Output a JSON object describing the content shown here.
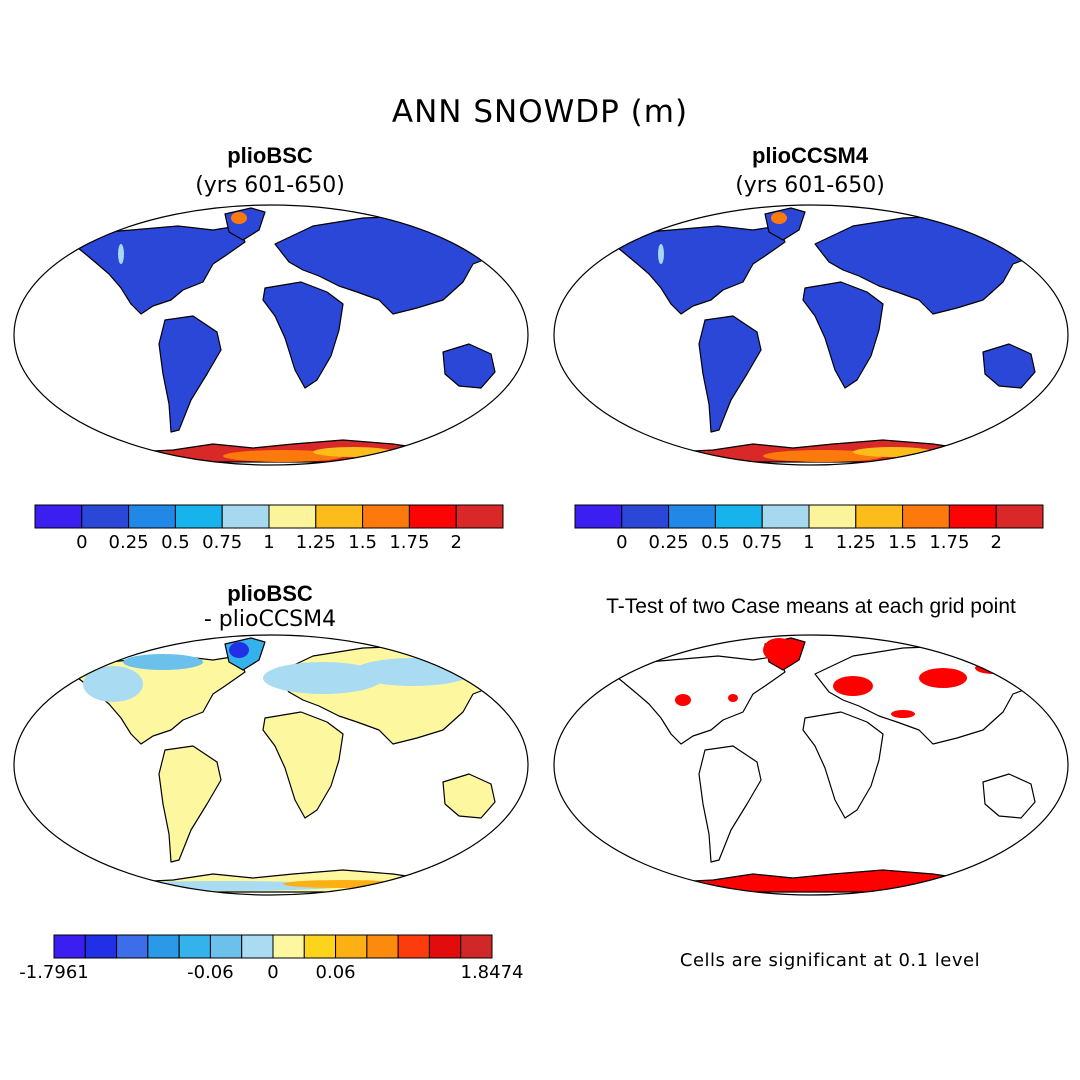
{
  "main_title": "ANN SNOWDP (m)",
  "panels": [
    {
      "title": "plioBSC",
      "subtitle": "(yrs 601-650)"
    },
    {
      "title": "plioCCSM4",
      "subtitle": "(yrs 601-650)"
    },
    {
      "title": "plioBSC",
      "subtitle": "- plioCCSM4"
    },
    {
      "title": "T-Test of two Case means at each grid point",
      "subtitle": ""
    }
  ],
  "colorbar_abs": {
    "colors": [
      "#3a1ff0",
      "#2b47d8",
      "#2288e8",
      "#16b3ec",
      "#a6d8f0",
      "#fcf49a",
      "#fcbc1c",
      "#fc7a0c",
      "#fc0404",
      "#d82828"
    ],
    "labels": [
      "0",
      "0.25",
      "0.5",
      "0.75",
      "1",
      "1.25",
      "1.5",
      "1.75",
      "2"
    ]
  },
  "colorbar_diff": {
    "colors": [
      "#3a1ff0",
      "#2130e6",
      "#3b6ee8",
      "#2a9ae8",
      "#33b2ec",
      "#6cc0ec",
      "#a9dcf2",
      "#fdf7a0",
      "#fcd41c",
      "#fcb014",
      "#fc8a0c",
      "#fc3c0c",
      "#e20c0c",
      "#d02828"
    ],
    "labels": [
      "-1.7961",
      "-0.06",
      "0",
      "0.06",
      "1.8474"
    ]
  },
  "significance_note": "Cells are significant at 0.1 level"
}
